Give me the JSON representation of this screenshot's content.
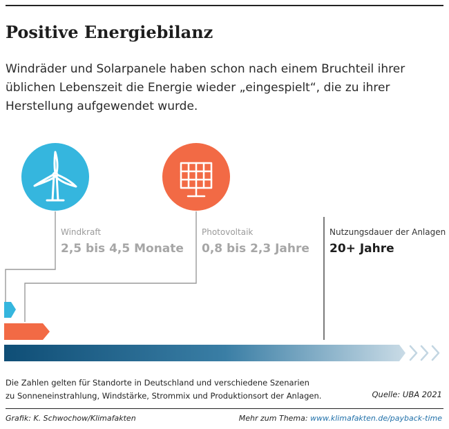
{
  "title": "Positive Energiebilanz",
  "subtitle_lines": [
    "Windräder und Solarpanele haben schon nach einem Bruchteil ihrer",
    "üblichen Lebenszeit die Energie wieder „eingespielt“, die zu ihrer",
    "Herstellung aufgewendet wurde."
  ],
  "chart_data": {
    "type": "bar",
    "title": "Positive Energiebilanz",
    "categories": [
      "Windkraft",
      "Photovoltaik",
      "Nutzungsdauer der Anlagen"
    ],
    "values_text": [
      "2,5 bis 4,5 Monate",
      "0,8 bis 2,3 Jahre",
      "20+ Jahre"
    ],
    "ranges_years": [
      [
        0.21,
        0.375
      ],
      [
        0.8,
        2.3
      ],
      [
        20,
        null
      ]
    ],
    "series": [
      {
        "name": "Windkraft",
        "color": "#35b6de",
        "icon": "wind-turbine-icon"
      },
      {
        "name": "Photovoltaik",
        "color": "#f26a45",
        "icon": "solar-panel-icon"
      },
      {
        "name": "Nutzungsdauer der Anlagen",
        "color": "#0f4e76"
      }
    ]
  },
  "note_lines": [
    "Die Zahlen gelten für Standorte in Deutschland und verschiedene Szenarien",
    "zu Sonneneinstrahlung, Windstärke, Strommix und Produktionsort der Anlagen."
  ],
  "source": "Quelle: UBA 2021",
  "credit": "Grafik: K. Schwochow/Klimafakten",
  "more_prefix": "Mehr zum Thema: ",
  "more_link": "www.klimafakten.de/payback-time"
}
